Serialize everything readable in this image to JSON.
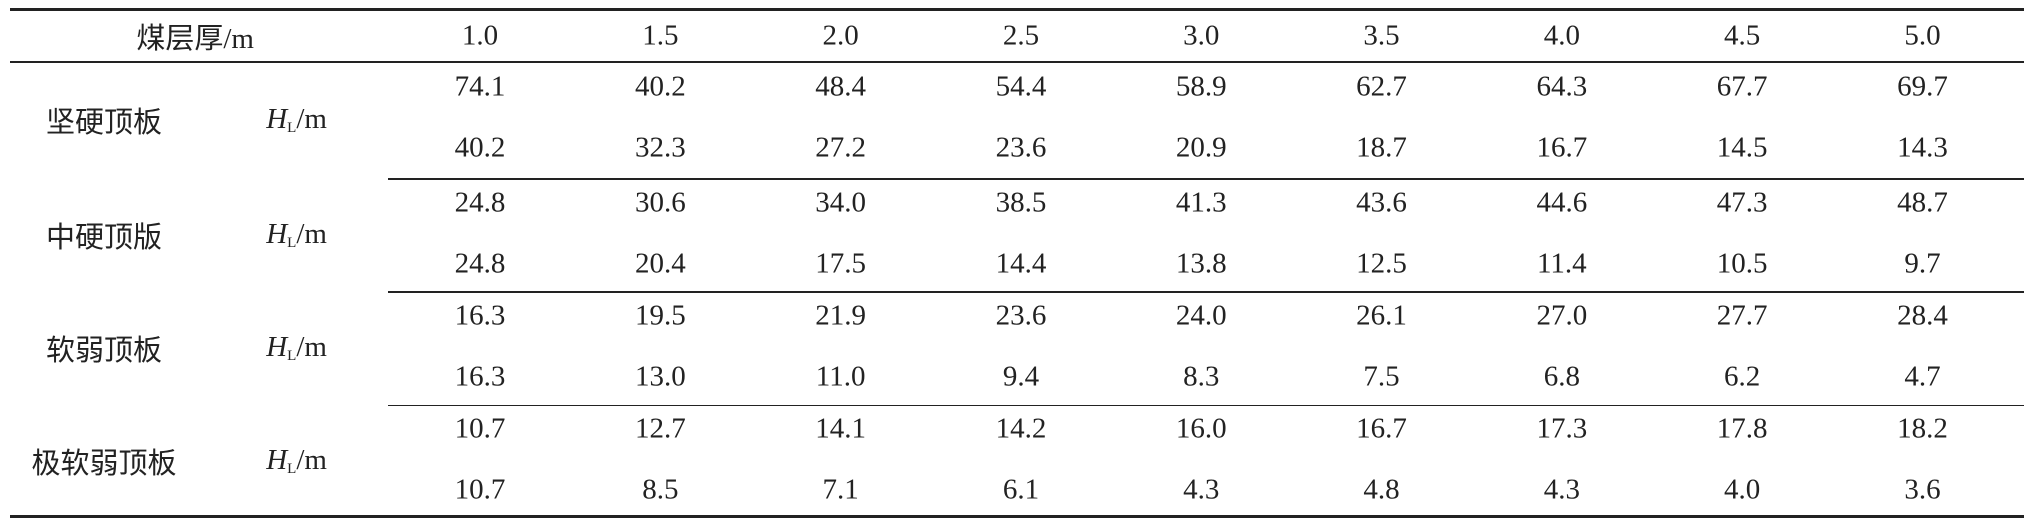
{
  "table": {
    "header": {
      "label": "煤层厚/m",
      "columns": [
        "1.0",
        "1.5",
        "2.0",
        "2.5",
        "3.0",
        "3.5",
        "4.0",
        "4.5",
        "5.0"
      ]
    },
    "groups": [
      {
        "name": "坚硬顶板",
        "unit": {
          "symbol": "H",
          "subscript": "L",
          "suffix": "/m"
        },
        "rows": [
          [
            "74.1",
            "40.2",
            "48.4",
            "54.4",
            "58.9",
            "62.7",
            "64.3",
            "67.7",
            "69.7"
          ],
          [
            "40.2",
            "32.3",
            "27.2",
            "23.6",
            "20.9",
            "18.7",
            "16.7",
            "14.5",
            "14.3"
          ]
        ]
      },
      {
        "name": "中硬顶版",
        "unit": {
          "symbol": "H",
          "subscript": "L",
          "suffix": "/m"
        },
        "rows": [
          [
            "24.8",
            "30.6",
            "34.0",
            "38.5",
            "41.3",
            "43.6",
            "44.6",
            "47.3",
            "48.7"
          ],
          [
            "24.8",
            "20.4",
            "17.5",
            "14.4",
            "13.8",
            "12.5",
            "11.4",
            "10.5",
            "9.7"
          ]
        ]
      },
      {
        "name": "软弱顶板",
        "unit": {
          "symbol": "H",
          "subscript": "L",
          "suffix": "/m"
        },
        "rows": [
          [
            "16.3",
            "19.5",
            "21.9",
            "23.6",
            "24.0",
            "26.1",
            "27.0",
            "27.7",
            "28.4"
          ],
          [
            "16.3",
            "13.0",
            "11.0",
            "9.4",
            "8.3",
            "7.5",
            "6.8",
            "6.2",
            "4.7"
          ]
        ]
      },
      {
        "name": "极软弱顶板",
        "unit": {
          "symbol": "H",
          "subscript": "L",
          "suffix": "/m"
        },
        "rows": [
          [
            "10.7",
            "12.7",
            "14.1",
            "14.2",
            "16.0",
            "16.7",
            "17.3",
            "17.8",
            "18.2"
          ],
          [
            "10.7",
            "8.5",
            "7.1",
            "6.1",
            "4.3",
            "4.8",
            "4.3",
            "4.0",
            "3.6"
          ]
        ]
      }
    ]
  }
}
